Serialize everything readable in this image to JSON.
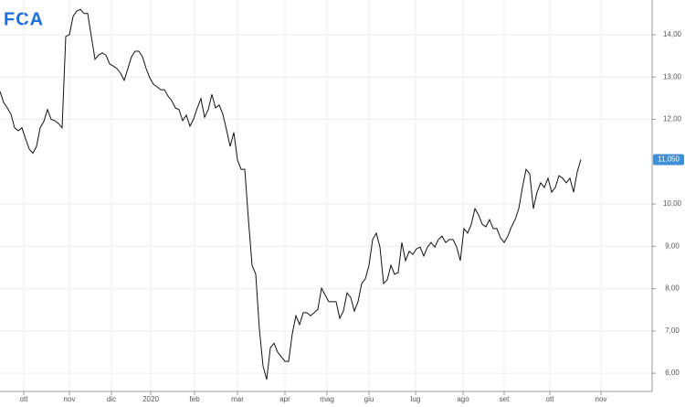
{
  "logo": "FCA",
  "chart_data": {
    "type": "line",
    "color": "#111111",
    "grid": true,
    "values": [
      12.66,
      12.4,
      12.27,
      12.12,
      11.8,
      11.73,
      11.8,
      11.54,
      11.3,
      11.2,
      11.36,
      11.8,
      11.95,
      12.23,
      12.0,
      11.97,
      11.9,
      11.8,
      13.96,
      14.0,
      14.43,
      14.56,
      14.6,
      14.5,
      14.5,
      13.96,
      13.42,
      13.52,
      13.57,
      13.52,
      13.31,
      13.26,
      13.2,
      13.09,
      12.92,
      13.2,
      13.48,
      13.61,
      13.61,
      13.48,
      13.2,
      12.98,
      12.83,
      12.77,
      12.7,
      12.7,
      12.55,
      12.44,
      12.27,
      12.23,
      11.97,
      12.1,
      11.84,
      12.01,
      12.27,
      12.49,
      12.05,
      12.23,
      12.59,
      12.27,
      12.34,
      12.12,
      11.75,
      11.36,
      11.69,
      11.04,
      10.82,
      10.82,
      9.63,
      8.55,
      8.34,
      7.04,
      6.17,
      5.85,
      6.6,
      6.71,
      6.5,
      6.39,
      6.28,
      6.28,
      6.93,
      7.36,
      7.15,
      7.43,
      7.43,
      7.36,
      7.43,
      7.51,
      8.01,
      7.85,
      7.69,
      7.69,
      7.69,
      7.3,
      7.47,
      7.9,
      7.79,
      7.47,
      7.69,
      8.12,
      8.23,
      8.55,
      9.16,
      9.31,
      8.98,
      8.12,
      8.21,
      8.55,
      8.34,
      8.38,
      9.09,
      8.66,
      8.88,
      8.81,
      8.94,
      8.98,
      8.77,
      8.98,
      9.09,
      8.98,
      9.16,
      9.24,
      9.09,
      9.16,
      9.16,
      8.98,
      8.66,
      9.42,
      9.31,
      9.52,
      9.89,
      9.74,
      9.52,
      9.46,
      9.63,
      9.42,
      9.42,
      9.2,
      9.09,
      9.24,
      9.46,
      9.63,
      9.89,
      10.39,
      10.82,
      10.71,
      9.89,
      10.28,
      10.5,
      10.39,
      10.61,
      10.28,
      10.39,
      10.67,
      10.61,
      10.5,
      10.61,
      10.28,
      10.76,
      11.05
    ],
    "last_price_label": "11,050",
    "xlim": [
      0,
      178.5
    ],
    "xticks": [
      {
        "value": 6.5,
        "label": "ott"
      },
      {
        "value": 19,
        "label": "nov"
      },
      {
        "value": 30.5,
        "label": "dic"
      },
      {
        "value": 41.25,
        "label": "2020"
      },
      {
        "value": 53.25,
        "label": "feb"
      },
      {
        "value": 65,
        "label": "mar"
      },
      {
        "value": 78,
        "label": "apr"
      },
      {
        "value": 89.5,
        "label": "mag"
      },
      {
        "value": 101,
        "label": "giu"
      },
      {
        "value": 113.75,
        "label": "lug"
      },
      {
        "value": 126.75,
        "label": "ago"
      },
      {
        "value": 138,
        "label": "set"
      },
      {
        "value": 150.5,
        "label": "ott"
      },
      {
        "value": 164.5,
        "label": "nov"
      }
    ],
    "ylim": [
      5.57,
      14.82
    ],
    "yticks": [
      {
        "value": 6,
        "label": "6,00"
      },
      {
        "value": 7,
        "label": "7,00"
      },
      {
        "value": 8,
        "label": "8,00"
      },
      {
        "value": 9,
        "label": "9,00"
      },
      {
        "value": 10,
        "label": "10,00"
      },
      {
        "value": 12,
        "label": "12,00"
      },
      {
        "value": 13,
        "label": "13,00"
      },
      {
        "value": 14,
        "label": "14,00"
      }
    ]
  }
}
